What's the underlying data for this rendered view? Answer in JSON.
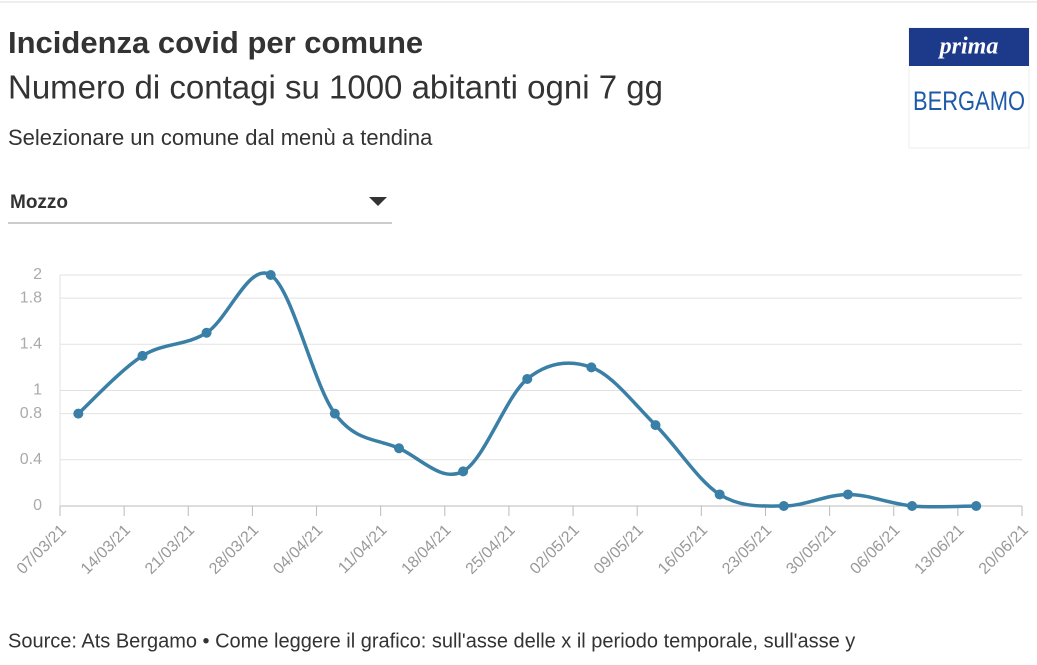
{
  "header": {
    "title": "Incidenza covid per comune",
    "subtitle": "Numero di contagi su 1000 abitanti ogni 7 gg",
    "instruction": "Selezionare un comune dal menù a tendina",
    "dropdown": "Mozzo",
    "logo_top": "prima",
    "logo_bottom": "BERGAMO"
  },
  "chart_data": {
    "type": "line",
    "x": [
      "09/03/21",
      "16/03/21",
      "23/03/21",
      "30/03/21",
      "06/04/21",
      "13/04/21",
      "20/04/21",
      "27/04/21",
      "04/05/21",
      "11/05/21",
      "18/05/21",
      "25/05/21",
      "01/06/21",
      "08/06/21",
      "15/06/21"
    ],
    "values": [
      0.8,
      1.3,
      1.5,
      2,
      0.8,
      0.5,
      0.3,
      1.1,
      1.2,
      0.7,
      0.1,
      0,
      0.1,
      0,
      0
    ],
    "color": "#3a7fa6",
    "xlim": [
      "07/03/21",
      "20/06/21"
    ],
    "xticks": [
      "07/03/21",
      "14/03/21",
      "21/03/21",
      "28/03/21",
      "04/04/21",
      "11/04/21",
      "18/04/21",
      "25/04/21",
      "02/05/21",
      "09/05/21",
      "16/05/21",
      "23/05/21",
      "30/05/21",
      "06/06/21",
      "13/06/21",
      "20/06/21"
    ],
    "ylim": [
      0,
      2
    ],
    "yticks": [
      0,
      0.4,
      0.8,
      1,
      1.4,
      1.8,
      2
    ],
    "grid": true
  },
  "footer": {
    "source": "Source: Ats Bergamo • Come leggere il grafico: sull'asse delle x il periodo temporale, sull'asse y"
  }
}
